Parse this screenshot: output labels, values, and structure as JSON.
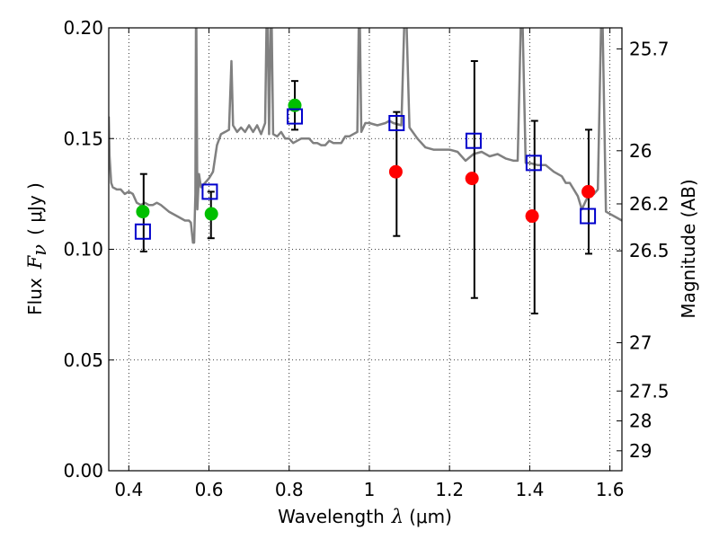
{
  "chart_data": {
    "type": "scatter",
    "xlabel": "Wavelength",
    "xlabel_symbol": "λ",
    "xlabel_unit": "(μm)",
    "ylabel": "Flux",
    "ylabel_symbol": "F",
    "ylabel_subscript": "ν",
    "ylabel_unit": "( μJy )",
    "y2label": "Magnitude (AB)",
    "xlim": [
      0.35,
      1.63
    ],
    "ylim": [
      0.0,
      0.2
    ],
    "grid": true,
    "x_ticks": [
      0.4,
      0.6,
      0.8,
      1.0,
      1.2,
      1.4,
      1.6
    ],
    "x_tick_labels": [
      "0.4",
      "0.6",
      "0.8",
      "1",
      "1.2",
      "1.4",
      "1.6"
    ],
    "y_ticks": [
      0.0,
      0.05,
      0.1,
      0.15,
      0.2
    ],
    "y_tick_labels": [
      "0.00",
      "0.05",
      "0.10",
      "0.15",
      "0.20"
    ],
    "mag_ticks": [
      {
        "flux": 0.1905,
        "label": "25.7"
      },
      {
        "flux": 0.1445,
        "label": "26"
      },
      {
        "flux": 0.1205,
        "label": "26.2"
      },
      {
        "flux": 0.0993,
        "label": "26.5"
      },
      {
        "flux": 0.0578,
        "label": "27"
      },
      {
        "flux": 0.036,
        "label": "27.5"
      },
      {
        "flux": 0.0225,
        "label": "28"
      },
      {
        "flux": 0.009,
        "label": "29"
      }
    ],
    "colors": {
      "model": "#808080",
      "green": "#00bf00",
      "red": "#ff0000",
      "square": "#0000cc",
      "errorbar": "#000000"
    },
    "model_sed": [
      [
        0.35,
        0.16
      ],
      [
        0.352,
        0.142
      ],
      [
        0.356,
        0.13
      ],
      [
        0.36,
        0.128
      ],
      [
        0.37,
        0.127
      ],
      [
        0.38,
        0.127
      ],
      [
        0.39,
        0.125
      ],
      [
        0.4,
        0.126
      ],
      [
        0.41,
        0.125
      ],
      [
        0.42,
        0.121
      ],
      [
        0.43,
        0.12
      ],
      [
        0.44,
        0.121
      ],
      [
        0.45,
        0.12
      ],
      [
        0.46,
        0.12
      ],
      [
        0.47,
        0.121
      ],
      [
        0.48,
        0.12
      ],
      [
        0.5,
        0.117
      ],
      [
        0.52,
        0.115
      ],
      [
        0.54,
        0.113
      ],
      [
        0.55,
        0.113
      ],
      [
        0.555,
        0.112
      ],
      [
        0.56,
        0.103
      ],
      [
        0.563,
        0.103
      ],
      [
        0.566,
        0.125
      ],
      [
        0.568,
        0.22
      ],
      [
        0.571,
        0.118
      ],
      [
        0.575,
        0.134
      ],
      [
        0.58,
        0.128
      ],
      [
        0.59,
        0.13
      ],
      [
        0.6,
        0.132
      ],
      [
        0.61,
        0.135
      ],
      [
        0.615,
        0.141
      ],
      [
        0.62,
        0.147
      ],
      [
        0.63,
        0.152
      ],
      [
        0.64,
        0.153
      ],
      [
        0.65,
        0.154
      ],
      [
        0.656,
        0.185
      ],
      [
        0.66,
        0.156
      ],
      [
        0.67,
        0.153
      ],
      [
        0.68,
        0.155
      ],
      [
        0.69,
        0.153
      ],
      [
        0.7,
        0.156
      ],
      [
        0.71,
        0.153
      ],
      [
        0.72,
        0.156
      ],
      [
        0.73,
        0.152
      ],
      [
        0.74,
        0.157
      ],
      [
        0.745,
        0.22
      ],
      [
        0.75,
        0.152
      ],
      [
        0.755,
        0.22
      ],
      [
        0.76,
        0.152
      ],
      [
        0.77,
        0.151
      ],
      [
        0.78,
        0.153
      ],
      [
        0.79,
        0.15
      ],
      [
        0.8,
        0.15
      ],
      [
        0.81,
        0.148
      ],
      [
        0.82,
        0.149
      ],
      [
        0.83,
        0.15
      ],
      [
        0.84,
        0.15
      ],
      [
        0.85,
        0.15
      ],
      [
        0.86,
        0.148
      ],
      [
        0.87,
        0.148
      ],
      [
        0.88,
        0.147
      ],
      [
        0.89,
        0.147
      ],
      [
        0.9,
        0.149
      ],
      [
        0.91,
        0.148
      ],
      [
        0.92,
        0.148
      ],
      [
        0.93,
        0.148
      ],
      [
        0.94,
        0.151
      ],
      [
        0.95,
        0.151
      ],
      [
        0.96,
        0.152
      ],
      [
        0.97,
        0.153
      ],
      [
        0.975,
        0.22
      ],
      [
        0.98,
        0.153
      ],
      [
        0.99,
        0.157
      ],
      [
        1.0,
        0.157
      ],
      [
        1.02,
        0.156
      ],
      [
        1.04,
        0.157
      ],
      [
        1.05,
        0.158
      ],
      [
        1.06,
        0.157
      ],
      [
        1.08,
        0.156
      ],
      [
        1.09,
        0.22
      ],
      [
        1.1,
        0.155
      ],
      [
        1.12,
        0.15
      ],
      [
        1.14,
        0.146
      ],
      [
        1.16,
        0.145
      ],
      [
        1.18,
        0.145
      ],
      [
        1.2,
        0.145
      ],
      [
        1.22,
        0.144
      ],
      [
        1.24,
        0.14
      ],
      [
        1.26,
        0.143
      ],
      [
        1.28,
        0.144
      ],
      [
        1.3,
        0.142
      ],
      [
        1.32,
        0.143
      ],
      [
        1.34,
        0.141
      ],
      [
        1.36,
        0.14
      ],
      [
        1.37,
        0.14
      ],
      [
        1.38,
        0.22
      ],
      [
        1.39,
        0.139
      ],
      [
        1.4,
        0.139
      ],
      [
        1.42,
        0.138
      ],
      [
        1.44,
        0.138
      ],
      [
        1.46,
        0.135
      ],
      [
        1.48,
        0.133
      ],
      [
        1.49,
        0.13
      ],
      [
        1.5,
        0.13
      ],
      [
        1.52,
        0.124
      ],
      [
        1.53,
        0.118
      ],
      [
        1.54,
        0.122
      ],
      [
        1.55,
        0.125
      ],
      [
        1.56,
        0.125
      ],
      [
        1.57,
        0.127
      ],
      [
        1.58,
        0.22
      ],
      [
        1.59,
        0.117
      ],
      [
        1.6,
        0.116
      ],
      [
        1.62,
        0.114
      ],
      [
        1.63,
        0.113
      ]
    ],
    "series": [
      {
        "marker": "circle",
        "color": "green",
        "points": [
          {
            "x": 0.435,
            "y": 0.117
          },
          {
            "x": 0.606,
            "y": 0.116
          },
          {
            "x": 0.814,
            "y": 0.165
          }
        ]
      },
      {
        "marker": "circle",
        "color": "red",
        "points": [
          {
            "x": 1.066,
            "y": 0.135
          },
          {
            "x": 1.256,
            "y": 0.132
          },
          {
            "x": 1.406,
            "y": 0.115
          },
          {
            "x": 1.546,
            "y": 0.126
          }
        ]
      },
      {
        "marker": "open-square",
        "color": "square",
        "points": [
          {
            "x": 0.435,
            "y": 0.108
          },
          {
            "x": 0.602,
            "y": 0.126
          },
          {
            "x": 0.814,
            "y": 0.16
          },
          {
            "x": 1.068,
            "y": 0.157
          },
          {
            "x": 1.26,
            "y": 0.149
          },
          {
            "x": 1.41,
            "y": 0.139
          },
          {
            "x": 1.545,
            "y": 0.115
          }
        ]
      }
    ],
    "errorbars": [
      {
        "x": 0.437,
        "low": 0.099,
        "high": 0.134
      },
      {
        "x": 0.605,
        "low": 0.105,
        "high": 0.126
      },
      {
        "x": 0.814,
        "low": 0.154,
        "high": 0.176
      },
      {
        "x": 1.068,
        "low": 0.106,
        "high": 0.162
      },
      {
        "x": 1.262,
        "low": 0.078,
        "high": 0.185
      },
      {
        "x": 1.412,
        "low": 0.071,
        "high": 0.158
      },
      {
        "x": 1.547,
        "low": 0.098,
        "high": 0.154
      }
    ]
  }
}
